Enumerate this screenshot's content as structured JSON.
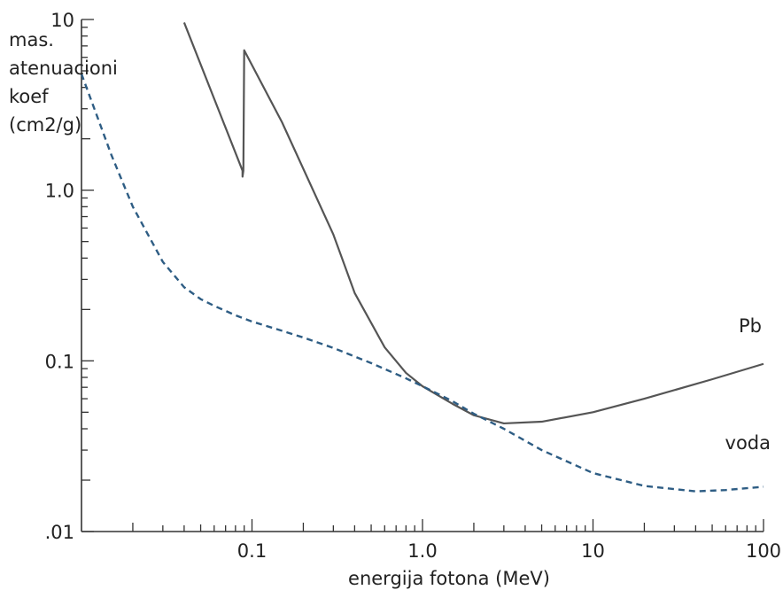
{
  "chart_data": {
    "type": "line",
    "title": "",
    "xlabel": "energija fotona (MeV)",
    "ylabel": [
      "mas.",
      "atenuacioni",
      "koef",
      "(cm2/g)"
    ],
    "x_scale": "log",
    "y_scale": "log",
    "xlim": [
      0.01,
      100
    ],
    "ylim": [
      0.01,
      10
    ],
    "grid": false,
    "x_tick_labels": [
      "0.1",
      "1.0",
      "10",
      "100"
    ],
    "x_tick_values": [
      0.1,
      1,
      10,
      100
    ],
    "y_tick_labels": [
      ".01",
      "0.1",
      "1.0",
      "10"
    ],
    "y_tick_values": [
      0.01,
      0.1,
      1,
      10
    ],
    "series": [
      {
        "name": "Pb",
        "style": "solid",
        "color": "#555555",
        "points": [
          [
            0.04,
            9.6
          ],
          [
            0.088,
            1.3
          ],
          [
            0.088,
            1.2
          ],
          [
            0.089,
            1.3
          ],
          [
            0.09,
            6.6
          ],
          [
            0.15,
            2.5
          ],
          [
            0.3,
            0.55
          ],
          [
            0.4,
            0.25
          ],
          [
            0.6,
            0.12
          ],
          [
            0.8,
            0.085
          ],
          [
            1.0,
            0.071
          ],
          [
            1.5,
            0.056
          ],
          [
            2.0,
            0.048
          ],
          [
            3.0,
            0.043
          ],
          [
            5.0,
            0.044
          ],
          [
            10.0,
            0.05
          ],
          [
            20.0,
            0.06
          ],
          [
            50.0,
            0.078
          ],
          [
            100.0,
            0.096
          ]
        ]
      },
      {
        "name": "voda",
        "style": "dashed",
        "color": "#2e5d84",
        "points": [
          [
            0.01,
            4.8
          ],
          [
            0.015,
            1.6
          ],
          [
            0.02,
            0.8
          ],
          [
            0.03,
            0.38
          ],
          [
            0.04,
            0.27
          ],
          [
            0.05,
            0.23
          ],
          [
            0.06,
            0.21
          ],
          [
            0.08,
            0.185
          ],
          [
            0.1,
            0.17
          ],
          [
            0.15,
            0.15
          ],
          [
            0.2,
            0.137
          ],
          [
            0.3,
            0.119
          ],
          [
            0.5,
            0.097
          ],
          [
            0.8,
            0.079
          ],
          [
            1.0,
            0.071
          ],
          [
            1.5,
            0.058
          ],
          [
            2.0,
            0.049
          ],
          [
            3.0,
            0.04
          ],
          [
            5.0,
            0.03
          ],
          [
            10.0,
            0.022
          ],
          [
            20.0,
            0.0185
          ],
          [
            40.0,
            0.0172
          ],
          [
            60.0,
            0.0175
          ],
          [
            100.0,
            0.0183
          ]
        ]
      }
    ]
  }
}
